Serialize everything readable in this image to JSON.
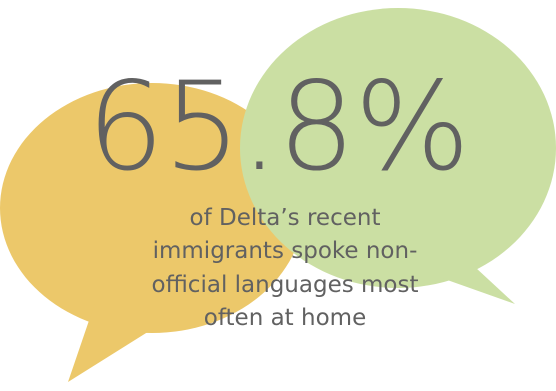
{
  "stat": {
    "value": "65.8%",
    "caption_lines": [
      "of Delta’s recent",
      "immigrants spoke non-",
      "official languages most",
      "often at home"
    ]
  },
  "colors": {
    "left_bubble": "#ecc86a",
    "right_bubble": "#cbdfa3",
    "text": "#616161",
    "background": "#ffffff"
  },
  "icons": [
    "speech-bubble-icon",
    "speech-bubble-icon"
  ]
}
